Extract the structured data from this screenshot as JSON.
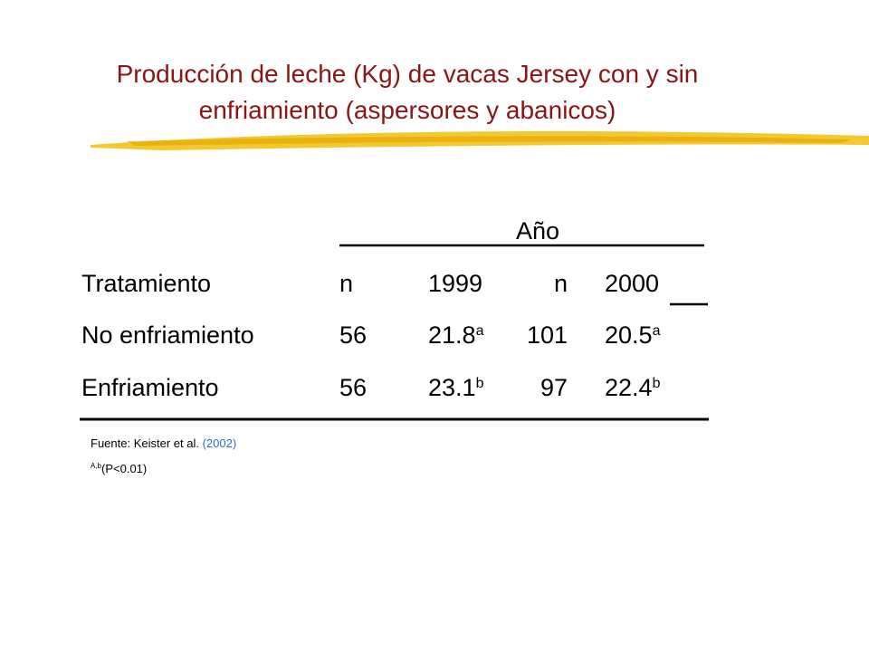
{
  "title": [
    "Producción de leche  (Kg) de vacas Jersey con y sin",
    "enfriamiento (aspersores y abanicos)"
  ],
  "table": {
    "group_header": "Año",
    "header": [
      "Tratamiento",
      "n",
      "1999",
      "n",
      "2000"
    ],
    "rows": [
      [
        {
          "text": "No enfriamiento"
        },
        {
          "text": "56"
        },
        {
          "text": "21.8",
          "sup": "a"
        },
        {
          "text": "101"
        },
        {
          "text": "20.5",
          "sup": "a"
        }
      ],
      [
        {
          "text": "Enfriamiento"
        },
        {
          "text": "56"
        },
        {
          "text": "23.1",
          "sup": "b"
        },
        {
          "text": "97"
        },
        {
          "text": "22.4",
          "sup": "b"
        }
      ]
    ]
  },
  "footnotes": {
    "source": "Fuente: Keister et al.",
    "source_year": "(2002)",
    "sig_sup": "A,b",
    "sig": "(P<0.01)"
  }
}
